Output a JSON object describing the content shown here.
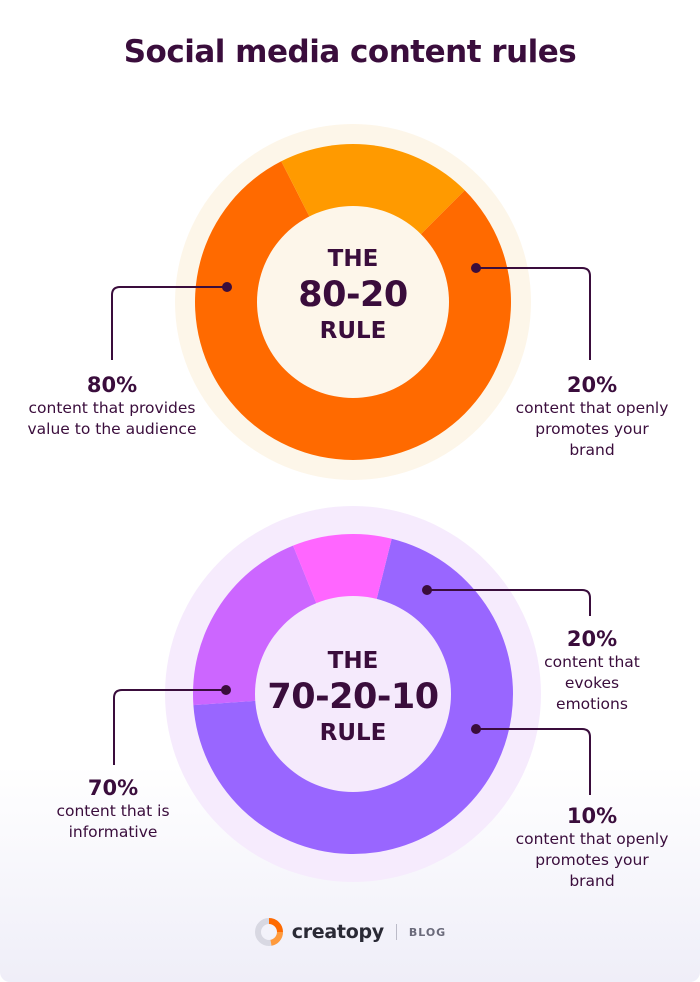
{
  "title": "Social media content rules",
  "chart_data": [
    {
      "type": "pie",
      "center_label": {
        "top": "THE",
        "middle": "80-20",
        "bottom": "RULE"
      },
      "slices": [
        {
          "value": 80,
          "pct_label": "80%",
          "description": "content that provides value to the audience",
          "color": "#ff6a00"
        },
        {
          "value": 20,
          "pct_label": "20%",
          "description": "content that openly promotes your brand",
          "color": "#ff9a00"
        }
      ],
      "halo_color": "#fdf6e9",
      "center_color": "#fdf6ea"
    },
    {
      "type": "pie",
      "center_label": {
        "top": "THE",
        "middle": "70-20-10",
        "bottom": "RULE"
      },
      "slices": [
        {
          "value": 70,
          "pct_label": "70%",
          "description": "content that is informative",
          "color": "#9966ff"
        },
        {
          "value": 20,
          "pct_label": "20%",
          "description": "content that evokes emotions",
          "color": "#cc66ff"
        },
        {
          "value": 10,
          "pct_label": "10%",
          "description": "content that openly promotes your brand",
          "color": "#ff66ff"
        }
      ],
      "halo_color": "#f6ebfd",
      "center_color": "#f5eafc"
    }
  ],
  "colors": {
    "text": "#3a0d3c",
    "connector": "#3a0d3c"
  },
  "footer": {
    "brand": "creatopy",
    "section": "BLOG",
    "logo_icon": "creatopy-logo-icon"
  }
}
